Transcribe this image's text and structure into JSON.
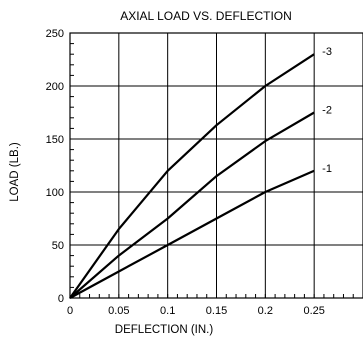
{
  "chart_data": {
    "type": "line",
    "title": "AXIAL LOAD VS. DEFLECTION",
    "xlabel": "DEFLECTION (IN.)",
    "ylabel": "LOAD (LB.)",
    "xlim": [
      0,
      0.3
    ],
    "ylim": [
      0,
      250
    ],
    "x_ticks": [
      "0",
      "0.05",
      "0.1",
      "0.15",
      "0.2",
      "0.25"
    ],
    "y_ticks": [
      "0",
      "50",
      "100",
      "150",
      "200",
      "250"
    ],
    "grid": true,
    "series": [
      {
        "name": "-3",
        "x": [
          0,
          0.05,
          0.1,
          0.15,
          0.2,
          0.25
        ],
        "y": [
          0,
          65,
          120,
          163,
          200,
          230
        ]
      },
      {
        "name": "-2",
        "x": [
          0,
          0.05,
          0.1,
          0.15,
          0.2,
          0.25
        ],
        "y": [
          0,
          40,
          75,
          115,
          148,
          175
        ]
      },
      {
        "name": "-1",
        "x": [
          0,
          0.05,
          0.1,
          0.15,
          0.2,
          0.25
        ],
        "y": [
          0,
          25,
          50,
          75,
          100,
          120
        ]
      }
    ]
  }
}
